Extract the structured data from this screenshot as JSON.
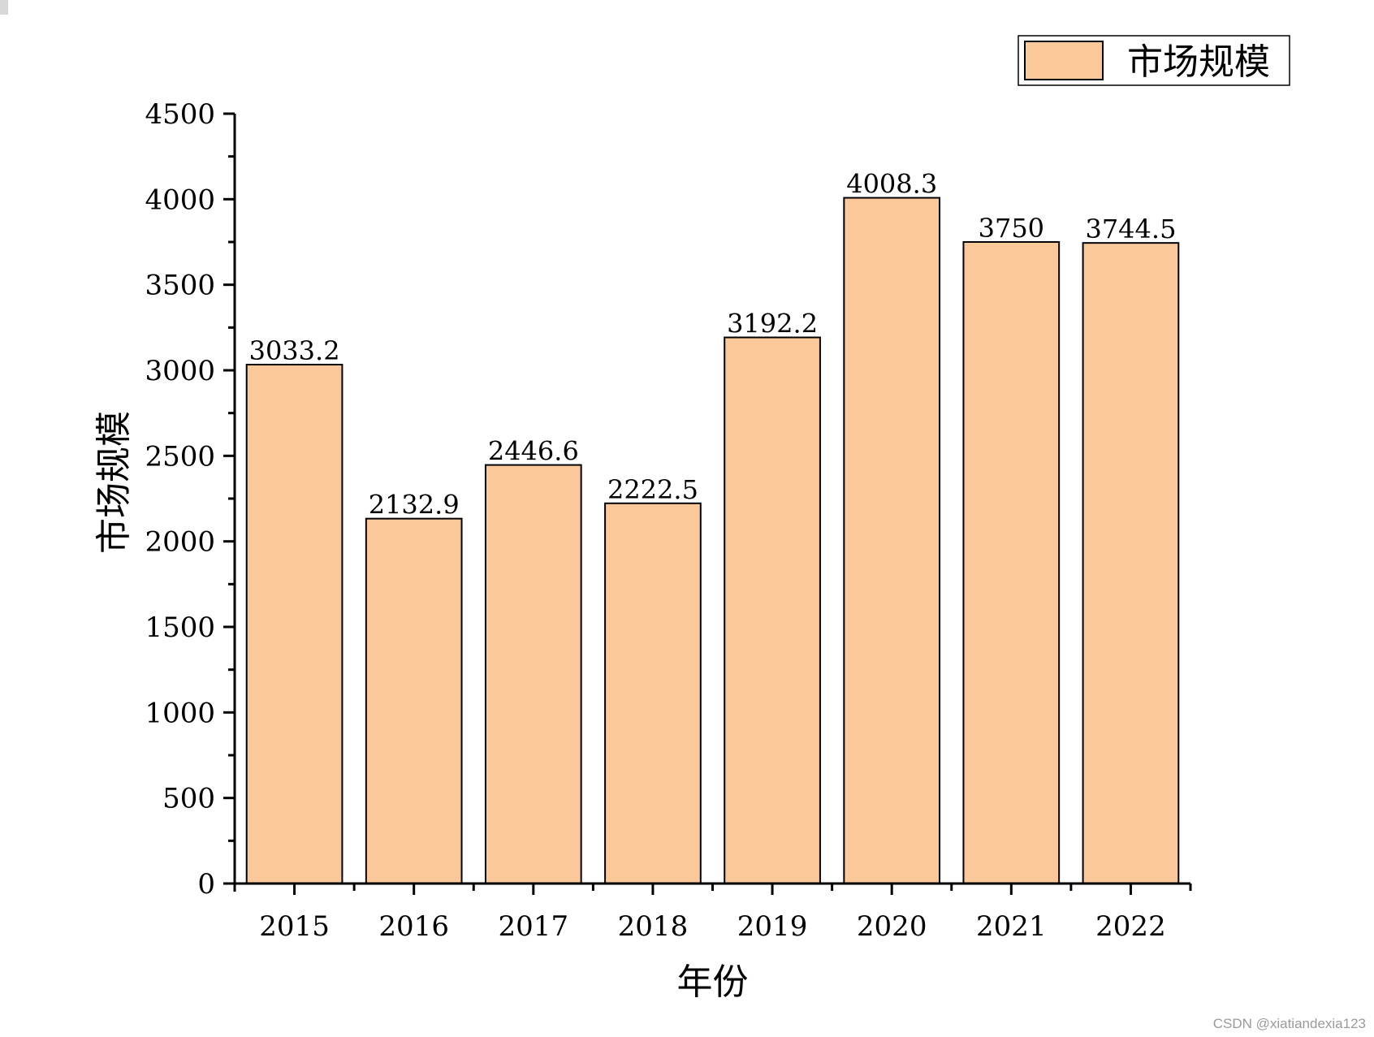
{
  "chart_data": {
    "type": "bar",
    "categories": [
      "2015",
      "2016",
      "2017",
      "2018",
      "2019",
      "2020",
      "2021",
      "2022"
    ],
    "series": [
      {
        "name": "市场规模",
        "values": [
          3033.2,
          2132.9,
          2446.6,
          2222.5,
          3192.2,
          4008.3,
          3750,
          3744.5
        ],
        "labels": [
          "3033.2",
          "2132.9",
          "2446.6",
          "2222.5",
          "3192.2",
          "4008.3",
          "3750",
          "3744.5"
        ]
      }
    ],
    "xlabel": "年份",
    "ylabel": "市场规模",
    "ylim": [
      0,
      4500
    ],
    "yticks": [
      0,
      500,
      1000,
      1500,
      2000,
      2500,
      3000,
      3500,
      4000,
      4500
    ],
    "grid": false,
    "legend": "top-right",
    "bar_color": "#fbc999",
    "edge_color": "#000000"
  },
  "watermark": "CSDN @xiatiandexia123"
}
